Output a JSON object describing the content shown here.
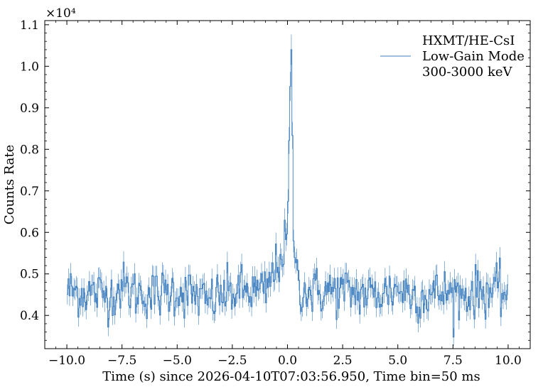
{
  "chart_data": {
    "type": "line",
    "title": "",
    "xlabel": "Time (s) since 2026-04-10T07:03:56.950, Time bin=50 ms",
    "ylabel": "Counts Rate",
    "y_offset_label": "×10⁴",
    "xlim": [
      -11.0,
      11.0
    ],
    "ylim": [
      3200,
      11100
    ],
    "x_ticks": [
      -10.0,
      -7.5,
      -5.0,
      -2.5,
      0.0,
      2.5,
      5.0,
      7.5,
      10.0
    ],
    "x_tick_labels": [
      "−10.0",
      "−7.5",
      "−5.0",
      "−2.5",
      "0.0",
      "2.5",
      "5.0",
      "7.5",
      "10.0"
    ],
    "y_ticks": [
      4000,
      5000,
      6000,
      7000,
      8000,
      9000,
      10000,
      11000
    ],
    "y_tick_labels": [
      "0.4",
      "0.5",
      "0.6",
      "0.7",
      "0.8",
      "0.9",
      "1.0",
      "1.1"
    ],
    "grid": false,
    "legend_position": "top-right",
    "legend": [
      "HXMT/HE-CsI",
      "Low-Gain Mode",
      "300-3000 keV"
    ],
    "line_color": "#3f7fbf",
    "bin_width_s": 0.05,
    "series": [
      {
        "x": [
          -10.0,
          -9.0,
          -8.0,
          -7.5,
          -7.0,
          -6.0,
          -5.0,
          -4.0,
          -3.7,
          -3.0,
          -2.0,
          -1.0,
          0.0,
          0.05,
          0.1,
          0.15,
          0.2,
          0.25,
          0.3,
          0.4,
          0.5,
          1.0,
          2.0,
          3.0,
          4.0,
          5.0,
          6.0,
          7.0,
          8.0,
          9.0,
          10.0
        ],
        "values": [
          4600,
          4550,
          4500,
          4700,
          4550,
          4500,
          4600,
          4450,
          4300,
          4500,
          4600,
          4550,
          5800,
          7600,
          8700,
          10300,
          10000,
          6200,
          5700,
          5300,
          4700,
          4550,
          4600,
          4550,
          4500,
          4650,
          4450,
          4550,
          4500,
          4600,
          4550
        ]
      }
    ]
  }
}
